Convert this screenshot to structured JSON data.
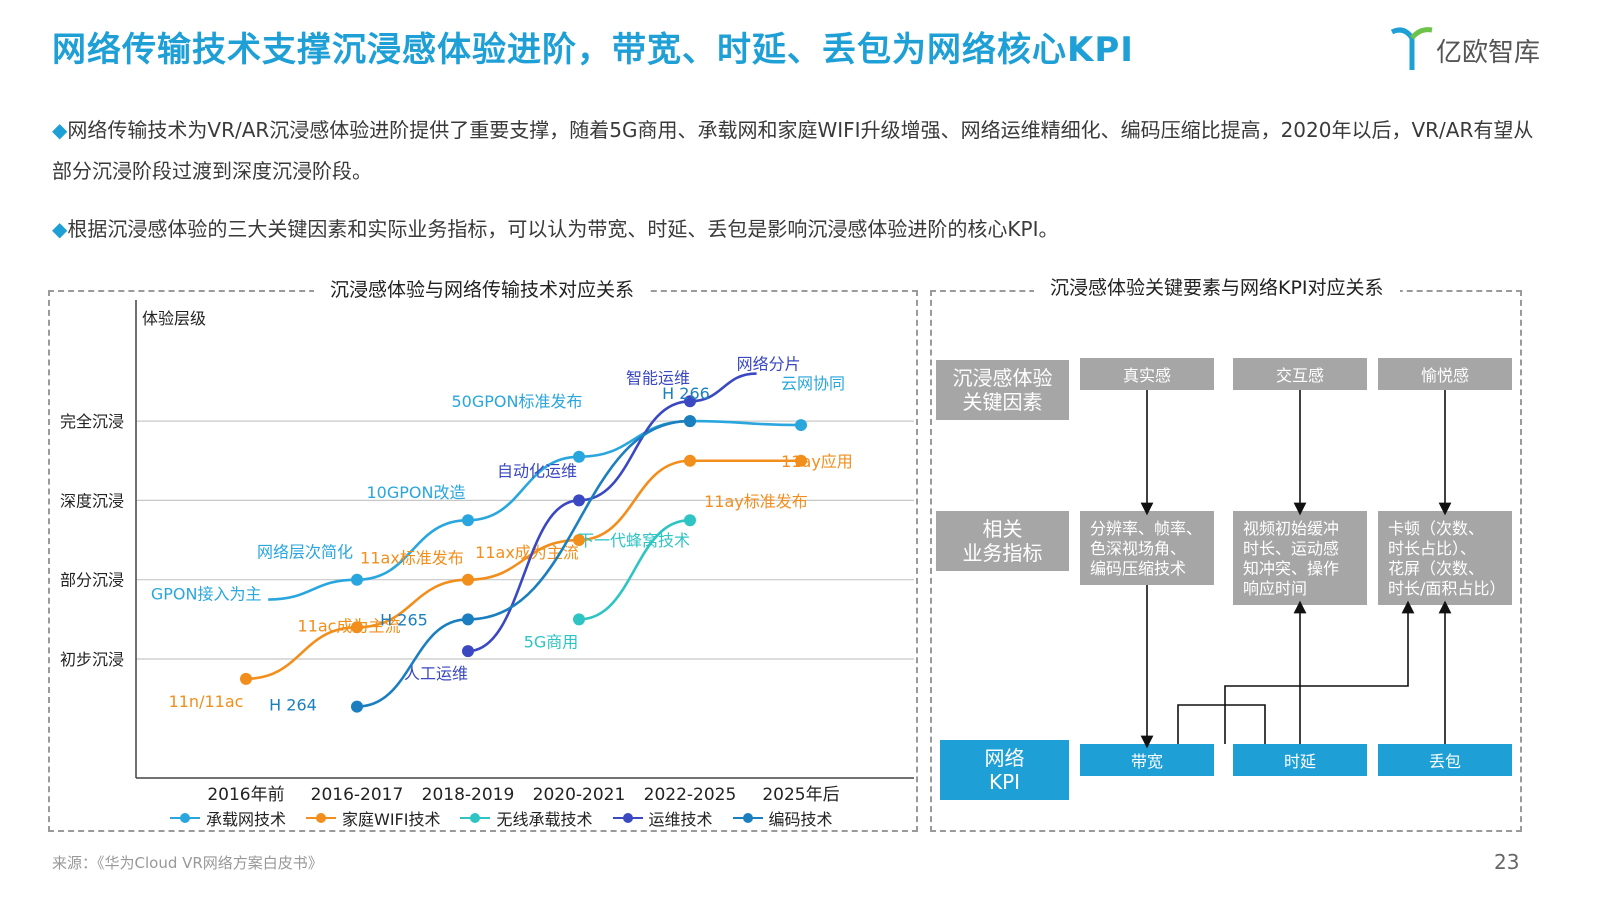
{
  "header": {
    "title": "网络传输技术支撑沉浸感体验进阶，带宽、时延、丢包为网络核心KPI",
    "logo_text": "亿欧智库"
  },
  "paragraphs": [
    {
      "bullet": "◆",
      "text": "网络传输技术为VR/AR沉浸感体验进阶提供了重要支撑，随着5G商用、承载网和家庭WIFI升级增强、网络运维精细化、编码压缩比提高，2020年以后，VR/AR有望从部分沉浸阶段过渡到深度沉浸阶段。"
    },
    {
      "bullet": "◆",
      "text": "根据沉浸感体验的三大关键因素和实际业务指标，可以认为带宽、时延、丢包是影响沉浸感体验进阶的核心KPI。"
    }
  ],
  "left_panel": {
    "title": "沉浸感体验与网络传输技术对应关系"
  },
  "right_panel": {
    "title": "沉浸感体验关键要素与网络KPI对应关系",
    "row_labels": [
      "沉浸感体验\n关键因素",
      "相关\n业务指标",
      "网络\nKPI"
    ],
    "factors": [
      "真实感",
      "交互感",
      "愉悦感"
    ],
    "metrics": [
      "分辨率、帧率、\n色深视场角、\n编码压缩技术",
      "视频初始缓冲\n时长、运动感\n知冲突、操作\n响应时间",
      "卡顿（次数、\n时长占比）、\n花屏（次数、\n时长/面积占比）"
    ],
    "kpis": [
      "带宽",
      "时延",
      "丢包"
    ]
  },
  "chart_data": {
    "type": "line",
    "ylabel": "体验层级",
    "y_levels": [
      "初步沉浸",
      "部分沉浸",
      "深度沉浸",
      "完全沉浸"
    ],
    "categories": [
      "2016年前",
      "2016-2017",
      "2018-2019",
      "2020-2021",
      "2022-2025",
      "2025年后"
    ],
    "series": [
      {
        "name": "承载网技术",
        "color": "#29a6dd",
        "points": [
          {
            "x": 0.2,
            "y": 0.75,
            "label": "GPON接入为主",
            "dot": false
          },
          {
            "x": 1,
            "y": 1.0,
            "label": "网络层次简化",
            "dot": true
          },
          {
            "x": 2,
            "y": 1.75,
            "label": "10GPON改造",
            "dot": true
          },
          {
            "x": 3,
            "y": 2.55,
            "label": "50GPON标准发布",
            "dot": true
          },
          {
            "x": 4,
            "y": 3.0,
            "label": "",
            "dot": true
          },
          {
            "x": 5,
            "y": 2.95,
            "label": "云网协同",
            "dot": true
          }
        ]
      },
      {
        "name": "家庭WIFI技术",
        "color": "#f28e1c",
        "points": [
          {
            "x": 0,
            "y": -0.25,
            "label": "11n/11ac",
            "dot": true
          },
          {
            "x": 1,
            "y": 0.4,
            "label": "11ac成为主流",
            "dot": true
          },
          {
            "x": 2,
            "y": 1.0,
            "label": "11ax标准发布",
            "dot": true
          },
          {
            "x": 3,
            "y": 1.5,
            "label": "11ax成为主流",
            "dot": true
          },
          {
            "x": 4,
            "y": 2.5,
            "label": "11ay标准发布",
            "dot": true
          },
          {
            "x": 5,
            "y": 2.5,
            "label": "11ay应用",
            "dot": true
          }
        ]
      },
      {
        "name": "无线承载技术",
        "color": "#2ec4c4",
        "points": [
          {
            "x": 3,
            "y": 0.5,
            "label": "5G商用",
            "dot": true
          },
          {
            "x": 4,
            "y": 1.75,
            "label": "下一代蜂窝技术",
            "dot": true
          }
        ]
      },
      {
        "name": "运维技术",
        "color": "#3a48c2",
        "points": [
          {
            "x": 2,
            "y": 0.1,
            "label": "人工运维",
            "dot": true
          },
          {
            "x": 3,
            "y": 2.0,
            "label": "自动化运维",
            "dot": true
          },
          {
            "x": 4,
            "y": 3.25,
            "label": "智能运维",
            "dot": true
          },
          {
            "x": 4.6,
            "y": 3.6,
            "label": "网络分片",
            "dot": false
          }
        ]
      },
      {
        "name": "编码技术",
        "color": "#1b7fbf",
        "points": [
          {
            "x": 1,
            "y": -0.6,
            "label": "H 264",
            "dot": true
          },
          {
            "x": 2,
            "y": 0.5,
            "label": "H 265",
            "dot": true
          },
          {
            "x": 4,
            "y": 3.0,
            "label": "H 266",
            "dot": true
          }
        ]
      }
    ]
  },
  "footer": {
    "source": "来源：《华为Cloud VR网络方案白皮书》",
    "page_number": "23"
  },
  "colors": {
    "accent": "#1e9fd6",
    "grey_box": "#a6a6a6"
  }
}
